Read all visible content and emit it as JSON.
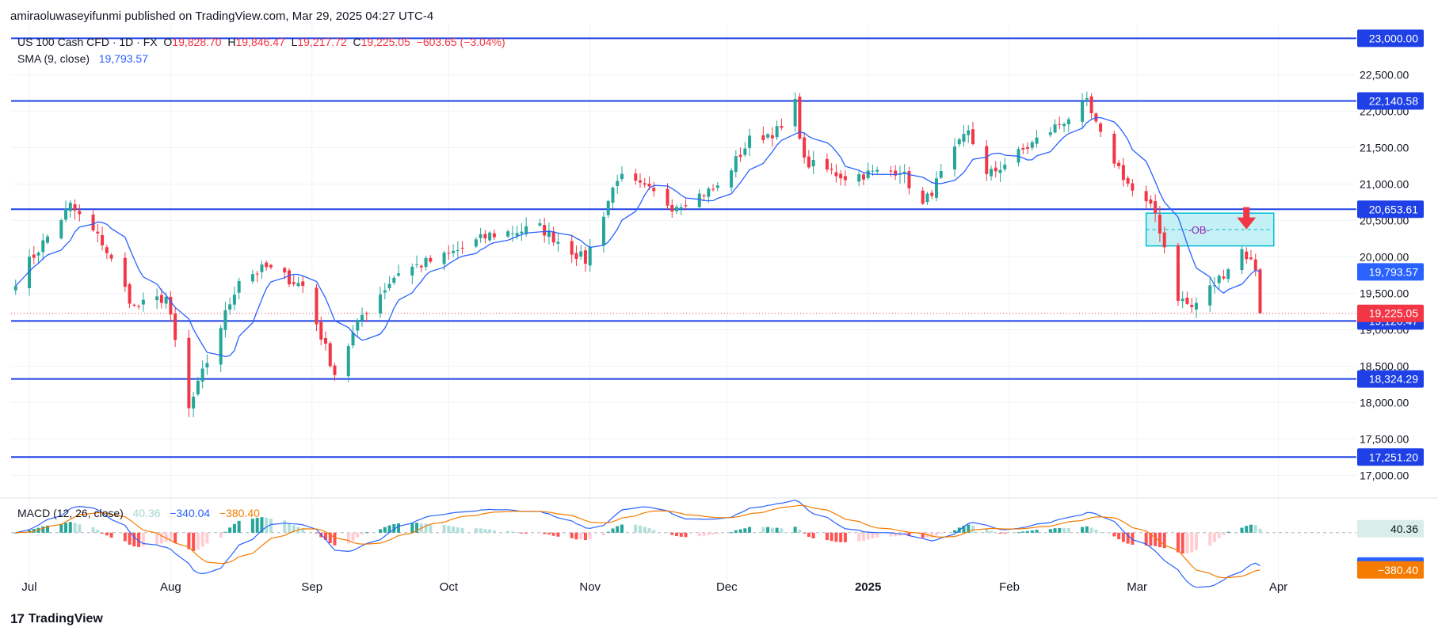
{
  "header": {
    "publisher": "amiraoluwaseyifunmi published on TradingView.com, Mar 29, 2025 04:27 UTC-4"
  },
  "legend": {
    "symbol": "US 100 Cash CFD · 1D · FX",
    "open_label": "O",
    "open": "19,828.70",
    "high_label": "H",
    "high": "19,846.47",
    "low_label": "L",
    "low": "19,217.72",
    "close_label": "C",
    "close": "19,225.05",
    "change": "−603.65 (−3.04%)",
    "sma_label": "SMA (9, close)",
    "sma_value": "19,793.57",
    "macd_label": "MACD (12, 26, close)",
    "macd_hist": "40.36",
    "macd_line": "−340.04",
    "macd_signal": "−380.40"
  },
  "footer": {
    "brand": "TradingView",
    "logo_glyph": "17"
  },
  "colors": {
    "up": "#26a69a",
    "down": "#f23645",
    "level": "#1e40e6",
    "sma": "#2962ff",
    "macd_line": "#2962ff",
    "signal_line": "#f57c00",
    "ob_fill": "#b2ebf2",
    "ob_border": "#00bcd4"
  },
  "chart_data": {
    "type": "candlestick",
    "price_axis": {
      "min": 16700,
      "max": 23200,
      "tick_labels": [
        "23,000.00",
        "22,500.00",
        "22,000.00",
        "21,500.00",
        "21,000.00",
        "20,500.00",
        "20,000.00",
        "19,500.00",
        "19,000.00",
        "18,500.00",
        "18,000.00",
        "17,500.00",
        "17,000.00"
      ],
      "tick_values": [
        23000,
        22500,
        22000,
        21500,
        21000,
        20500,
        20000,
        19500,
        19000,
        18500,
        18000,
        17500,
        17000
      ]
    },
    "time_axis": {
      "labels": [
        "Jul",
        "Aug",
        "Sep",
        "Oct",
        "Nov",
        "Dec",
        "2025",
        "Feb",
        "Mar",
        "Apr"
      ],
      "bold": [
        "2025"
      ]
    },
    "horizontal_levels": [
      {
        "value": 23000,
        "label": "23,000.00"
      },
      {
        "value": 22140.58,
        "label": "22,140.58"
      },
      {
        "value": 20653.61,
        "label": "20,653.61"
      },
      {
        "value": 19120.47,
        "label": "19,120.47"
      },
      {
        "value": 18324.29,
        "label": "18,324.29"
      },
      {
        "value": 17251.2,
        "label": "17,251.20"
      }
    ],
    "price_badges": [
      {
        "value": 19793.57,
        "label": "19,793.57",
        "kind": "sma"
      },
      {
        "value": 19225.05,
        "label": "19,225.05",
        "kind": "last"
      }
    ],
    "order_block": {
      "label": "-OB-",
      "top": 20600,
      "bottom": 20150,
      "start": "2025-03-03",
      "end": "2025-03-31"
    },
    "arrow": {
      "date": "2025-03-25",
      "value": 20400
    },
    "sma": {
      "period": 9,
      "source": "close"
    },
    "anchors": [
      [
        "2024-06-28",
        19680
      ],
      [
        "2024-07-10",
        20700
      ],
      [
        "2024-07-17",
        20200
      ],
      [
        "2024-07-24",
        19300
      ],
      [
        "2024-07-31",
        19450
      ],
      [
        "2024-08-05",
        17900
      ],
      [
        "2024-08-08",
        18400
      ],
      [
        "2024-08-16",
        19700
      ],
      [
        "2024-08-22",
        19850
      ],
      [
        "2024-08-30",
        19600
      ],
      [
        "2024-09-06",
        18400
      ],
      [
        "2024-09-12",
        19200
      ],
      [
        "2024-09-20",
        19800
      ],
      [
        "2024-09-30",
        20000
      ],
      [
        "2024-10-10",
        20300
      ],
      [
        "2024-10-21",
        20400
      ],
      [
        "2024-10-31",
        19950
      ],
      [
        "2024-11-07",
        21100
      ],
      [
        "2024-11-14",
        20900
      ],
      [
        "2024-11-19",
        20700
      ],
      [
        "2024-11-29",
        20950
      ],
      [
        "2024-12-06",
        21600
      ],
      [
        "2024-12-13",
        21750
      ],
      [
        "2024-12-16",
        22100
      ],
      [
        "2024-12-18",
        21300
      ],
      [
        "2024-12-27",
        21100
      ],
      [
        "2025-01-08",
        21200
      ],
      [
        "2025-01-13",
        20700
      ],
      [
        "2025-01-23",
        21750
      ],
      [
        "2025-01-27",
        21100
      ],
      [
        "2025-02-07",
        21600
      ],
      [
        "2025-02-18",
        22100
      ],
      [
        "2025-02-21",
        21650
      ],
      [
        "2025-02-28",
        20900
      ],
      [
        "2025-03-05",
        20600
      ],
      [
        "2025-03-10",
        19450
      ],
      [
        "2025-03-13",
        19300
      ],
      [
        "2025-03-19",
        19700
      ],
      [
        "2025-03-24",
        20100
      ],
      [
        "2025-03-27",
        19850
      ],
      [
        "2025-03-28",
        19225.05
      ]
    ],
    "last_candle": {
      "date": "2025-03-28",
      "open": 19828.7,
      "high": 19846.47,
      "low": 19217.72,
      "close": 19225.05
    },
    "macd": {
      "params": [
        12,
        26
      ],
      "last": {
        "histogram": 40.36,
        "macd": -340.04,
        "signal": -380.4
      },
      "axis_min": -560,
      "axis_max": 330,
      "badges": [
        {
          "value": 40.36,
          "label": "40.36",
          "kind": "hist"
        },
        {
          "value": -340.04,
          "label": "−340.04",
          "kind": "macd"
        },
        {
          "value": -380.4,
          "label": "−380.40",
          "kind": "signal"
        }
      ]
    }
  }
}
